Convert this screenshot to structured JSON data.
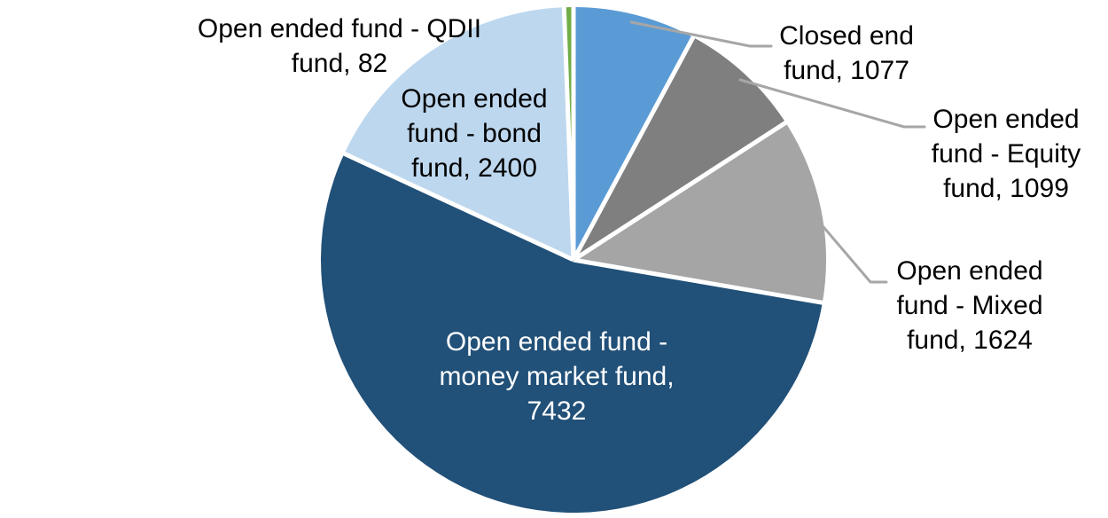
{
  "chart_data": {
    "type": "pie",
    "title": "",
    "legend": "none",
    "start_angle_deg": 0,
    "direction": "clockwise",
    "total": 13714,
    "leader_line_color": "#A6A6A6",
    "slice_border_color": "#FFFFFF",
    "slices": [
      {
        "id": "closed-end-fund",
        "label": "Closed end fund",
        "value": 1077,
        "color": "#5B9BD5",
        "label_color": "#000000",
        "label_lines": [
          "Closed end",
          "fund, 1077"
        ],
        "leader_line": true
      },
      {
        "id": "equity-fund",
        "label": "Open ended fund - Equity fund",
        "value": 1099,
        "color": "#7F7F7F",
        "label_color": "#000000",
        "label_lines": [
          "Open ended",
          "fund - Equity",
          "fund, 1099"
        ],
        "leader_line": true
      },
      {
        "id": "mixed-fund",
        "label": "Open ended fund - Mixed fund",
        "value": 1624,
        "color": "#A5A5A5",
        "label_color": "#000000",
        "label_lines": [
          "Open ended",
          "fund - Mixed",
          "fund, 1624"
        ],
        "leader_line": true
      },
      {
        "id": "money-market-fund",
        "label": "Open ended fund - money market fund",
        "value": 7432,
        "color": "#215078",
        "label_color": "#FFFFFF",
        "label_lines": [
          "Open ended fund -",
          "money market fund,",
          "7432"
        ],
        "leader_line": false
      },
      {
        "id": "bond-fund",
        "label": "Open ended fund - bond fund",
        "value": 2400,
        "color": "#BDD7EE",
        "label_color": "#000000",
        "label_lines": [
          "Open ended",
          "fund - bond",
          "fund, 2400"
        ],
        "leader_line": false
      },
      {
        "id": "qdii-fund",
        "label": "Open ended fund - QDII fund",
        "value": 82,
        "color": "#70AD47",
        "label_color": "#000000",
        "label_lines": [
          "Open ended fund - QDII",
          "fund, 82"
        ],
        "leader_line": false
      }
    ]
  }
}
